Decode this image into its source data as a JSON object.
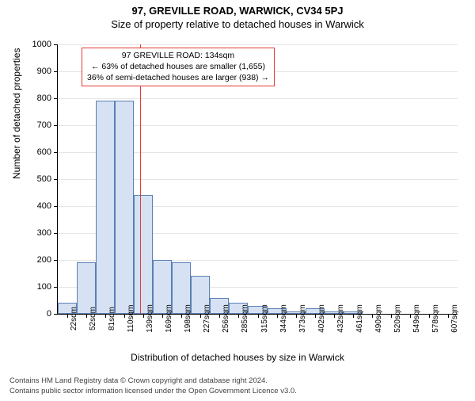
{
  "title_main": "97, GREVILLE ROAD, WARWICK, CV34 5PJ",
  "title_sub": "Size of property relative to detached houses in Warwick",
  "y_axis_title": "Number of detached properties",
  "x_axis_title": "Distribution of detached houses by size in Warwick",
  "chart": {
    "type": "histogram",
    "ylim": [
      0,
      1000
    ],
    "ytick_step": 100,
    "bar_fill": "#d6e2f3",
    "bar_border": "#5b7fb5",
    "grid_color": "#e5e5e5",
    "ref_line_color": "#e53935",
    "ref_line_value_sqm": 134,
    "categories": [
      "22sqm",
      "52sqm",
      "81sqm",
      "110sqm",
      "139sqm",
      "169sqm",
      "198sqm",
      "227sqm",
      "256sqm",
      "285sqm",
      "315sqm",
      "344sqm",
      "373sqm",
      "402sqm",
      "432sqm",
      "461sqm",
      "490sqm",
      "520sqm",
      "549sqm",
      "578sqm",
      "607sqm"
    ],
    "values": [
      40,
      190,
      790,
      790,
      440,
      200,
      190,
      140,
      60,
      40,
      30,
      20,
      10,
      20,
      10,
      10,
      0,
      0,
      0,
      0,
      0
    ]
  },
  "annotation": {
    "line1": "97 GREVILLE ROAD: 134sqm",
    "line2": "← 63% of detached houses are smaller (1,655)",
    "line3": "36% of semi-detached houses are larger (938) →"
  },
  "footer": {
    "line1": "Contains HM Land Registry data © Crown copyright and database right 2024.",
    "line2": "Contains public sector information licensed under the Open Government Licence v3.0."
  }
}
